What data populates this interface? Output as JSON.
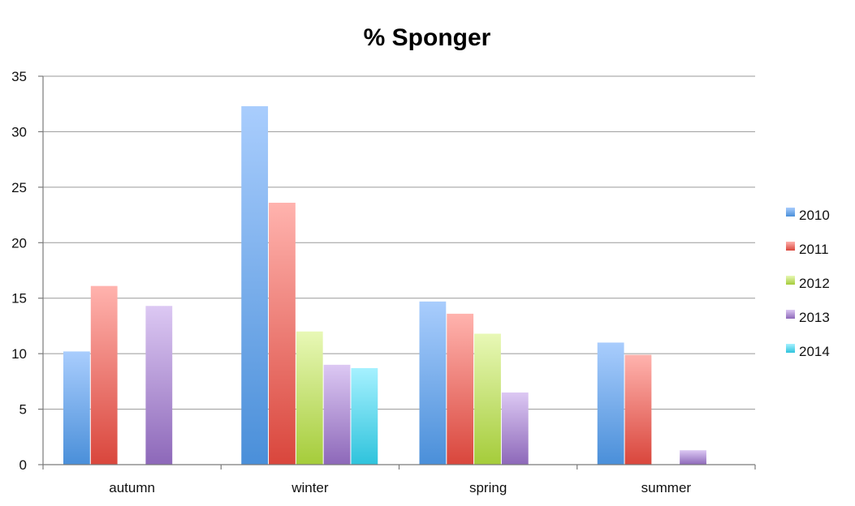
{
  "chart_data": {
    "type": "bar",
    "title": "% Sponger",
    "xlabel": "",
    "ylabel": "",
    "categories": [
      "autumn",
      "winter",
      "spring",
      "summer"
    ],
    "ylim": [
      0,
      35
    ],
    "yticks": [
      0,
      5,
      10,
      15,
      20,
      25,
      30,
      35
    ],
    "grid": true,
    "legend_position": "right",
    "series": [
      {
        "name": "2010",
        "color_top": "#a9cdfd",
        "color_bottom": "#4a8fd9",
        "values": [
          10.2,
          32.3,
          14.7,
          11.0
        ]
      },
      {
        "name": "2011",
        "color_top": "#ffb3ae",
        "color_bottom": "#d9463c",
        "values": [
          16.1,
          23.6,
          13.6,
          9.9
        ]
      },
      {
        "name": "2012",
        "color_top": "#e8f8b6",
        "color_bottom": "#a5cc3a",
        "values": [
          null,
          12.0,
          11.8,
          null
        ]
      },
      {
        "name": "2013",
        "color_top": "#dcc8f3",
        "color_bottom": "#8d68b9",
        "values": [
          14.3,
          9.0,
          6.5,
          1.3
        ]
      },
      {
        "name": "2014",
        "color_top": "#a6f1ff",
        "color_bottom": "#2fc3dc",
        "values": [
          null,
          8.7,
          null,
          null
        ]
      }
    ]
  }
}
